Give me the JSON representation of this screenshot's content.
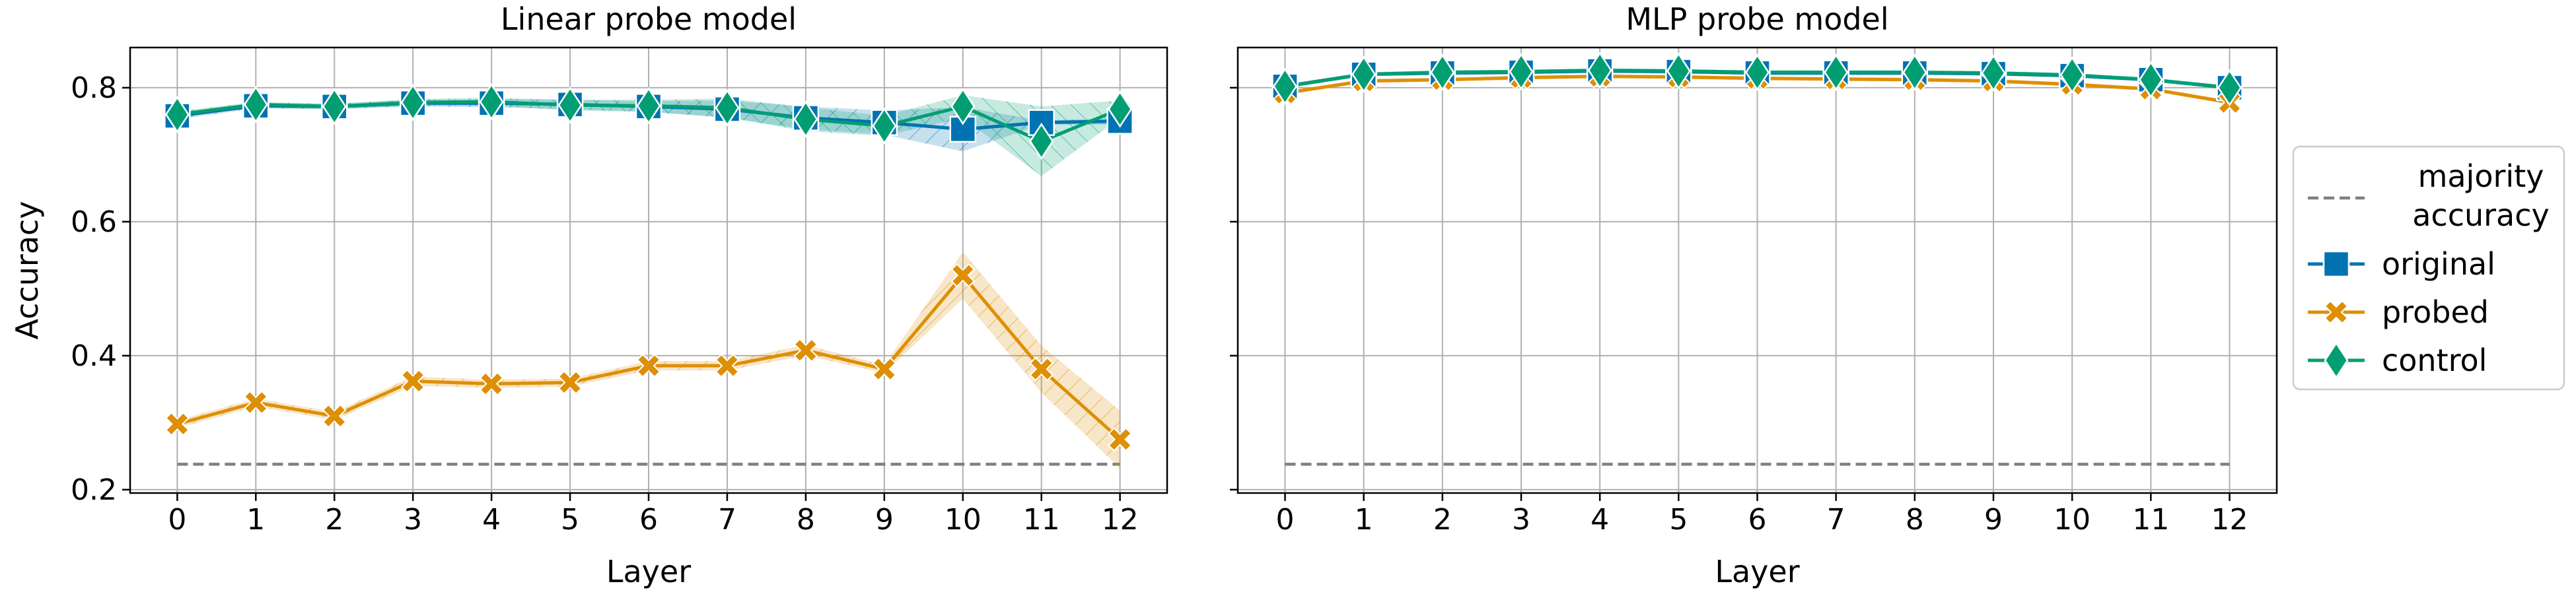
{
  "chart_data": [
    {
      "type": "line",
      "title": "Linear probe model",
      "xlabel": "Layer",
      "ylabel": "Accuracy",
      "x": [
        0,
        1,
        2,
        3,
        4,
        5,
        6,
        7,
        8,
        9,
        10,
        11,
        12
      ],
      "xticks": [
        "0",
        "1",
        "2",
        "3",
        "4",
        "5",
        "6",
        "7",
        "8",
        "9",
        "10",
        "11",
        "12"
      ],
      "yticks": [
        "0.2",
        "0.4",
        "0.6",
        "0.8"
      ],
      "ylim": [
        0.195,
        0.86
      ],
      "grid": true,
      "majority_accuracy": 0.238,
      "series": [
        {
          "name": "original",
          "color": "#0173b2",
          "marker": "square",
          "values": [
            0.758,
            0.773,
            0.772,
            0.777,
            0.777,
            0.775,
            0.772,
            0.768,
            0.755,
            0.748,
            0.738,
            0.748,
            0.75
          ],
          "lower": [
            0.753,
            0.769,
            0.768,
            0.772,
            0.771,
            0.768,
            0.764,
            0.755,
            0.738,
            0.73,
            0.705,
            0.745,
            0.745
          ],
          "upper": [
            0.763,
            0.777,
            0.776,
            0.782,
            0.783,
            0.782,
            0.78,
            0.781,
            0.772,
            0.766,
            0.771,
            0.751,
            0.755
          ]
        },
        {
          "name": "probed",
          "color": "#de8f05",
          "marker": "x",
          "values": [
            0.298,
            0.33,
            0.31,
            0.362,
            0.358,
            0.36,
            0.385,
            0.385,
            0.408,
            0.38,
            0.52,
            0.38,
            0.275
          ],
          "lower": [
            0.292,
            0.324,
            0.304,
            0.355,
            0.352,
            0.354,
            0.378,
            0.378,
            0.4,
            0.374,
            0.485,
            0.345,
            0.232
          ],
          "upper": [
            0.304,
            0.336,
            0.316,
            0.369,
            0.364,
            0.366,
            0.392,
            0.392,
            0.416,
            0.386,
            0.555,
            0.415,
            0.318
          ]
        },
        {
          "name": "control",
          "color": "#029e73",
          "marker": "diamond",
          "values": [
            0.76,
            0.775,
            0.772,
            0.778,
            0.779,
            0.774,
            0.773,
            0.77,
            0.753,
            0.743,
            0.772,
            0.72,
            0.768
          ],
          "lower": [
            0.755,
            0.771,
            0.768,
            0.773,
            0.773,
            0.766,
            0.764,
            0.756,
            0.735,
            0.728,
            0.755,
            0.668,
            0.755
          ],
          "upper": [
            0.765,
            0.779,
            0.776,
            0.783,
            0.785,
            0.782,
            0.782,
            0.784,
            0.771,
            0.758,
            0.789,
            0.772,
            0.781
          ]
        }
      ]
    },
    {
      "type": "line",
      "title": "MLP probe model",
      "xlabel": "Layer",
      "ylabel": "",
      "x": [
        0,
        1,
        2,
        3,
        4,
        5,
        6,
        7,
        8,
        9,
        10,
        11,
        12
      ],
      "xticks": [
        "0",
        "1",
        "2",
        "3",
        "4",
        "5",
        "6",
        "7",
        "8",
        "9",
        "10",
        "11",
        "12"
      ],
      "yticks": [],
      "ylim": [
        0.195,
        0.86
      ],
      "grid": true,
      "majority_accuracy": 0.238,
      "series": [
        {
          "name": "original",
          "color": "#0173b2",
          "marker": "square",
          "values": [
            0.802,
            0.82,
            0.822,
            0.823,
            0.825,
            0.824,
            0.822,
            0.822,
            0.822,
            0.821,
            0.818,
            0.812,
            0.8
          ],
          "lower": [
            0.799,
            0.817,
            0.819,
            0.82,
            0.822,
            0.821,
            0.819,
            0.819,
            0.819,
            0.818,
            0.815,
            0.809,
            0.797
          ],
          "upper": [
            0.805,
            0.823,
            0.825,
            0.826,
            0.828,
            0.827,
            0.825,
            0.825,
            0.825,
            0.824,
            0.821,
            0.815,
            0.803
          ]
        },
        {
          "name": "probed",
          "color": "#de8f05",
          "marker": "x",
          "values": [
            0.792,
            0.81,
            0.812,
            0.815,
            0.817,
            0.816,
            0.814,
            0.813,
            0.812,
            0.81,
            0.805,
            0.798,
            0.778
          ],
          "lower": [
            0.789,
            0.807,
            0.809,
            0.812,
            0.814,
            0.813,
            0.811,
            0.81,
            0.809,
            0.807,
            0.802,
            0.795,
            0.775
          ],
          "upper": [
            0.795,
            0.813,
            0.815,
            0.818,
            0.82,
            0.819,
            0.817,
            0.816,
            0.815,
            0.813,
            0.808,
            0.801,
            0.781
          ]
        },
        {
          "name": "control",
          "color": "#029e73",
          "marker": "diamond",
          "values": [
            0.802,
            0.82,
            0.823,
            0.824,
            0.826,
            0.825,
            0.823,
            0.823,
            0.823,
            0.822,
            0.819,
            0.812,
            0.8
          ],
          "lower": [
            0.799,
            0.817,
            0.82,
            0.821,
            0.823,
            0.822,
            0.82,
            0.82,
            0.82,
            0.819,
            0.816,
            0.809,
            0.797
          ],
          "upper": [
            0.805,
            0.823,
            0.826,
            0.827,
            0.829,
            0.828,
            0.826,
            0.826,
            0.826,
            0.825,
            0.822,
            0.815,
            0.803
          ]
        }
      ]
    }
  ],
  "legend": {
    "placement": "right",
    "items": [
      {
        "label": "majority accuracy",
        "lines": [
          "majority",
          "accuracy"
        ],
        "style": "dashed",
        "color": "#808080"
      },
      {
        "label": "original",
        "lines": [
          "original"
        ],
        "marker": "square",
        "color": "#0173b2"
      },
      {
        "label": "probed",
        "lines": [
          "probed"
        ],
        "marker": "x",
        "color": "#de8f05"
      },
      {
        "label": "control",
        "lines": [
          "control"
        ],
        "marker": "diamond",
        "color": "#029e73"
      }
    ]
  }
}
